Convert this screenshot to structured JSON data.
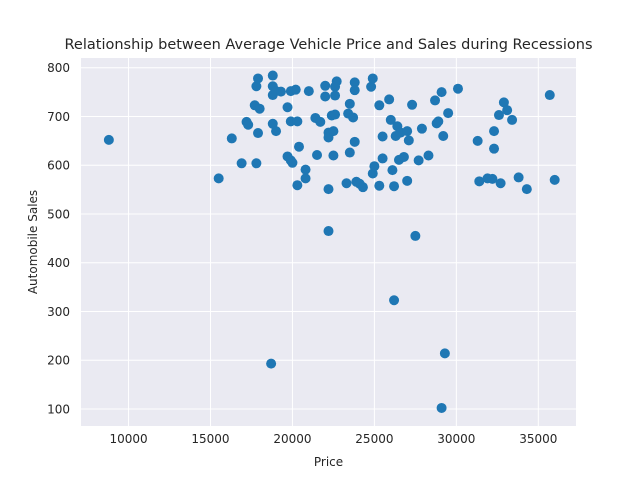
{
  "chart_data": {
    "type": "scatter",
    "title": "Relationship between Average Vehicle Price and Sales during Recessions",
    "xlabel": "Price",
    "ylabel": "Automobile Sales",
    "xlim": [
      7100,
      37300
    ],
    "ylim": [
      65,
      820
    ],
    "xticks": [
      10000,
      15000,
      20000,
      25000,
      30000,
      35000
    ],
    "yticks": [
      100,
      200,
      300,
      400,
      500,
      600,
      700,
      800
    ],
    "grid": true,
    "colors": {
      "marker": "#1f77b4",
      "plot_background": "#eaeaf2",
      "grid": "#ffffff"
    },
    "series": [
      {
        "points": [
          [
            8800,
            652
          ],
          [
            15500,
            573
          ],
          [
            16300,
            655
          ],
          [
            16900,
            604
          ],
          [
            17200,
            689
          ],
          [
            17300,
            683
          ],
          [
            17700,
            723
          ],
          [
            17800,
            762
          ],
          [
            17900,
            778
          ],
          [
            17800,
            604
          ],
          [
            18000,
            716
          ],
          [
            17900,
            666
          ],
          [
            18700,
            193
          ],
          [
            18800,
            784
          ],
          [
            18800,
            762
          ],
          [
            18800,
            685
          ],
          [
            18800,
            744
          ],
          [
            19000,
            670
          ],
          [
            19000,
            752
          ],
          [
            19300,
            751
          ],
          [
            19700,
            719
          ],
          [
            19700,
            618
          ],
          [
            19900,
            752
          ],
          [
            19900,
            610
          ],
          [
            20000,
            605
          ],
          [
            19900,
            690
          ],
          [
            20200,
            755
          ],
          [
            20400,
            638
          ],
          [
            20300,
            690
          ],
          [
            20300,
            559
          ],
          [
            20800,
            591
          ],
          [
            20800,
            573
          ],
          [
            21000,
            752
          ],
          [
            21400,
            697
          ],
          [
            21500,
            621
          ],
          [
            21700,
            689
          ],
          [
            22000,
            763
          ],
          [
            22000,
            741
          ],
          [
            22200,
            667
          ],
          [
            22200,
            657
          ],
          [
            22200,
            551
          ],
          [
            22200,
            465
          ],
          [
            22400,
            702
          ],
          [
            22500,
            670
          ],
          [
            22500,
            620
          ],
          [
            22700,
            772
          ],
          [
            22600,
            761
          ],
          [
            22600,
            743
          ],
          [
            22600,
            704
          ],
          [
            23300,
            563
          ],
          [
            23400,
            706
          ],
          [
            23500,
            726
          ],
          [
            23500,
            626
          ],
          [
            23700,
            698
          ],
          [
            23800,
            770
          ],
          [
            23800,
            754
          ],
          [
            23800,
            648
          ],
          [
            23900,
            566
          ],
          [
            24100,
            562
          ],
          [
            24300,
            555
          ],
          [
            24800,
            761
          ],
          [
            24900,
            778
          ],
          [
            24900,
            583
          ],
          [
            25000,
            598
          ],
          [
            25300,
            723
          ],
          [
            25300,
            558
          ],
          [
            25500,
            659
          ],
          [
            25500,
            614
          ],
          [
            25900,
            735
          ],
          [
            26000,
            693
          ],
          [
            26100,
            590
          ],
          [
            26200,
            557
          ],
          [
            26200,
            323
          ],
          [
            26300,
            660
          ],
          [
            26400,
            680
          ],
          [
            26500,
            611
          ],
          [
            26600,
            667
          ],
          [
            26800,
            617
          ],
          [
            27000,
            670
          ],
          [
            27000,
            568
          ],
          [
            27100,
            651
          ],
          [
            27300,
            724
          ],
          [
            27500,
            455
          ],
          [
            27700,
            610
          ],
          [
            27900,
            675
          ],
          [
            28300,
            620
          ],
          [
            28700,
            733
          ],
          [
            28800,
            686
          ],
          [
            28900,
            690
          ],
          [
            29100,
            750
          ],
          [
            29100,
            102
          ],
          [
            29200,
            660
          ],
          [
            29300,
            214
          ],
          [
            29500,
            707
          ],
          [
            30100,
            757
          ],
          [
            31300,
            650
          ],
          [
            31400,
            567
          ],
          [
            31900,
            573
          ],
          [
            32200,
            572
          ],
          [
            32300,
            634
          ],
          [
            32300,
            670
          ],
          [
            32600,
            703
          ],
          [
            32700,
            563
          ],
          [
            32900,
            729
          ],
          [
            33100,
            713
          ],
          [
            33400,
            693
          ],
          [
            33800,
            575
          ],
          [
            34300,
            551
          ],
          [
            35700,
            744
          ],
          [
            36000,
            570
          ]
        ]
      }
    ]
  }
}
